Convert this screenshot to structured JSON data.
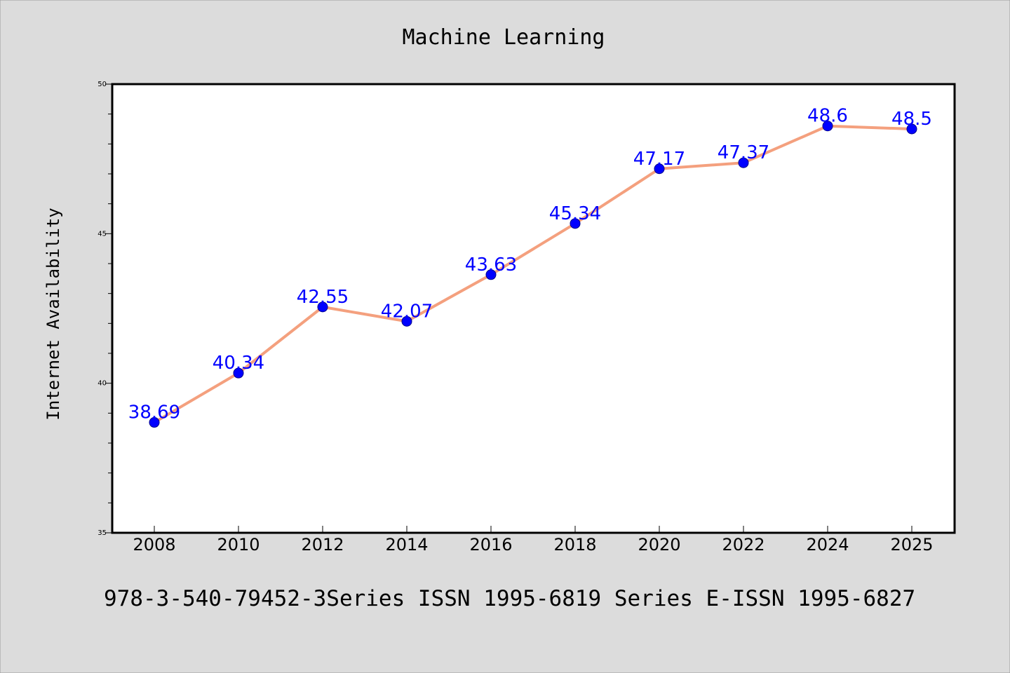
{
  "chart_data": {
    "type": "line",
    "title": "Machine Learning",
    "xlabel": "",
    "ylabel": "Internet Availability",
    "categories": [
      "2008",
      "2010",
      "2012",
      "2014",
      "2016",
      "2018",
      "2020",
      "2022",
      "2024",
      "2025"
    ],
    "values": [
      38.69,
      40.34,
      42.55,
      42.07,
      43.63,
      45.34,
      47.17,
      47.37,
      48.6,
      48.5
    ],
    "data_labels": [
      "38.69",
      "40.34",
      "42.55",
      "42.07",
      "43.63",
      "45.34",
      "47.17",
      "47.37",
      "48.6",
      "48.5"
    ],
    "ylim": [
      35,
      50
    ],
    "yticks": [
      35,
      40,
      45,
      50
    ],
    "ytick_labels": [
      "35",
      "40",
      "45",
      "50"
    ],
    "grid": false,
    "legend": "none",
    "line_color": "#f4a07e",
    "marker_color": "#0000ff",
    "label_color": "#0000ff"
  },
  "footer": {
    "text": "978-3-540-79452-3Series ISSN 1995-6819 Series E-ISSN 1995-6827"
  },
  "colors": {
    "background": "#dcdcdc",
    "plot_background": "#ffffff",
    "axis": "#000000"
  }
}
